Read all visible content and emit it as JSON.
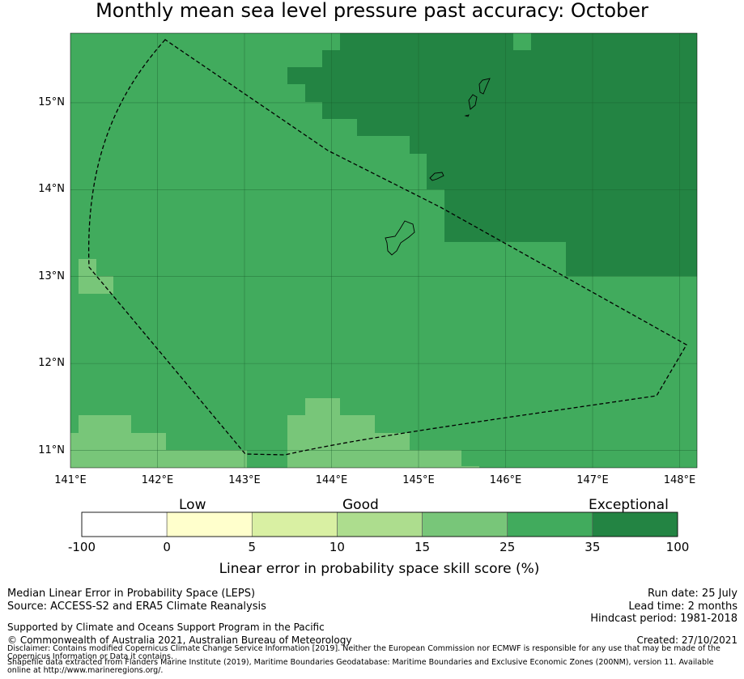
{
  "title": "Monthly mean sea level pressure past accuracy: October",
  "map": {
    "lon_range": [
      141.0,
      148.2
    ],
    "lat_range": [
      10.8,
      15.8
    ],
    "x_ticks": [
      "141°E",
      "142°E",
      "143°E",
      "144°E",
      "145°E",
      "146°E",
      "147°E",
      "148°E"
    ],
    "y_ticks": [
      "15°N",
      "14°N",
      "13°N",
      "12°N",
      "11°N"
    ],
    "gridlines": true,
    "colors": {
      "exceptional": "#238443",
      "good_high": "#41ab5d",
      "good_mid": "#78c679",
      "boundary_line": "#000000"
    },
    "islands": [
      "Guam",
      "Rota",
      "Tinian",
      "Saipan"
    ]
  },
  "legend": {
    "categories": [
      "Low",
      "Good",
      "Exceptional"
    ],
    "ticks": [
      "-100",
      "0",
      "5",
      "10",
      "15",
      "25",
      "35",
      "100"
    ],
    "bin_colors": [
      "#ffffff",
      "#ffffcc",
      "#d9f0a3",
      "#addd8e",
      "#78c679",
      "#41ab5d",
      "#238443"
    ],
    "title": "Linear error in probability space skill score (%)"
  },
  "footer": {
    "left1": "Median Linear Error in Probability Space (LEPS)",
    "left2": "Source: ACCESS-S2 and ERA5 Climate Reanalysis",
    "support": "Supported by Climate and Oceans Support Program in the Pacific",
    "copyright": "© Commonwealth of Australia 2021, Australian Bureau of Meteorology",
    "disclaimer": "Disclaimer: Contains modified Copernicus Climate Change Service Information [2019]. Neither the European Commission nor ECMWF is responsible for any use that may be made of the Copernicus Information or Data it contains.",
    "shapefile": "Shapefile data extracted from Flanders Marine Institute (2019), Maritime Boundaries Geodatabase: Maritime Boundaries and Exclusive Economic Zones (200NM), version 11. Available online at http://www.marineregions.org/.",
    "run_date": "Run date: 25 July",
    "lead_time": "Lead time: 2 months",
    "hindcast": "Hindcast period: 1981-2018",
    "created": "Created: 27/10/2021"
  }
}
